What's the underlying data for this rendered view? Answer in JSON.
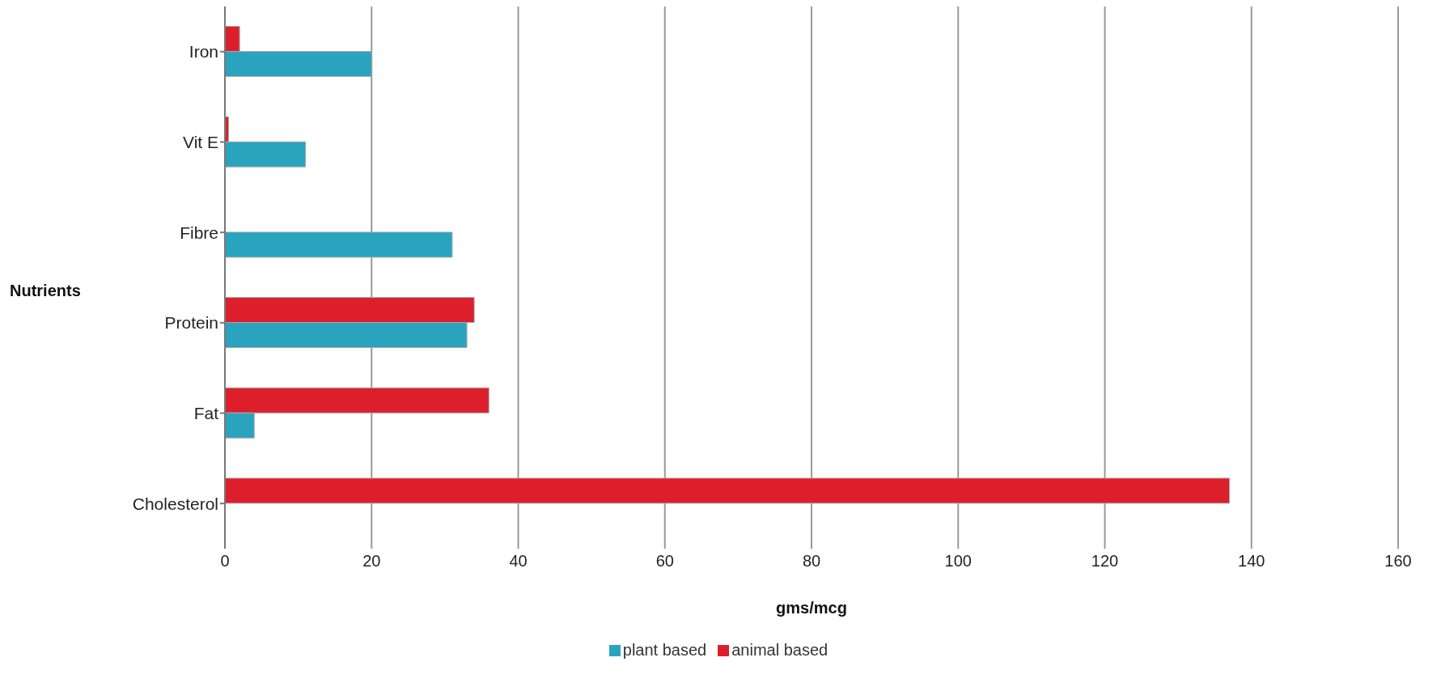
{
  "chart_data": {
    "type": "bar",
    "orientation": "horizontal",
    "xlabel": "gms/mcg",
    "ylabel": "Nutrients",
    "categories": [
      "Iron",
      "Vit E",
      "Fibre",
      "Protein",
      "Fat",
      "Cholesterol"
    ],
    "series": [
      {
        "name": "plant based",
        "color": "#2aa3bf",
        "values": [
          20,
          11,
          31,
          33,
          4,
          null
        ]
      },
      {
        "name": "animal based",
        "color": "#dc1f2b",
        "values": [
          2,
          0.5,
          null,
          34,
          36,
          137
        ]
      }
    ],
    "xlim": [
      0,
      160
    ],
    "xticks": [
      0,
      20,
      40,
      60,
      80,
      100,
      120,
      140,
      160
    ],
    "grid": "x",
    "legend": "bottom"
  }
}
